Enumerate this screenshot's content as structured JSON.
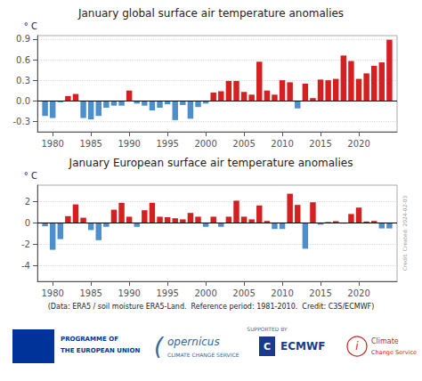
{
  "chart_data": [
    {
      "type": "bar",
      "title": "January global surface air temperature anomalies",
      "ylabel": "° C",
      "x": [
        1979,
        1980,
        1981,
        1982,
        1983,
        1984,
        1985,
        1986,
        1987,
        1988,
        1989,
        1990,
        1991,
        1992,
        1993,
        1994,
        1995,
        1996,
        1997,
        1998,
        1999,
        2000,
        2001,
        2002,
        2003,
        2004,
        2005,
        2006,
        2007,
        2008,
        2009,
        2010,
        2011,
        2012,
        2013,
        2014,
        2015,
        2016,
        2017,
        2018,
        2019,
        2020,
        2021,
        2022,
        2023,
        2024
      ],
      "values": [
        -0.22,
        -0.25,
        -0.02,
        0.07,
        0.1,
        -0.25,
        -0.27,
        -0.22,
        -0.1,
        -0.07,
        -0.07,
        0.15,
        -0.04,
        -0.07,
        -0.14,
        -0.1,
        -0.05,
        -0.28,
        -0.06,
        -0.26,
        -0.09,
        -0.04,
        0.12,
        0.14,
        0.29,
        0.29,
        0.13,
        0.09,
        0.57,
        0.15,
        0.09,
        0.3,
        0.27,
        -0.11,
        0.25,
        0.04,
        0.31,
        0.3,
        0.32,
        0.66,
        0.58,
        0.32,
        0.4,
        0.51,
        0.56,
        0.89
      ],
      "colors": [
        "#4d8fcc",
        "#4d8fcc",
        "#4d8fcc",
        "#d42020",
        "#d42020",
        "#4d8fcc",
        "#4d8fcc",
        "#4d8fcc",
        "#4d8fcc",
        "#4d8fcc",
        "#4d8fcc",
        "#d42020",
        "#4d8fcc",
        "#4d8fcc",
        "#4d8fcc",
        "#4d8fcc",
        "#4d8fcc",
        "#4d8fcc",
        "#4d8fcc",
        "#4d8fcc",
        "#4d8fcc",
        "#4d8fcc",
        "#d42020",
        "#d42020",
        "#d42020",
        "#d42020",
        "#d42020",
        "#d42020",
        "#d42020",
        "#d42020",
        "#d42020",
        "#d42020",
        "#d42020",
        "#4d8fcc",
        "#d42020",
        "#d42020",
        "#d42020",
        "#d42020",
        "#d42020",
        "#d42020",
        "#d42020",
        "#d42020",
        "#d42020",
        "#d42020",
        "#d42020",
        "#d42020"
      ],
      "xlim": [
        1978,
        2025
      ],
      "xticks": [
        1980,
        1985,
        1990,
        1995,
        2000,
        2005,
        2010,
        2015,
        2020
      ],
      "ylim": [
        -0.45,
        0.95
      ],
      "yticks": [
        -0.3,
        {
          "value": 0,
          "label": "0.0"
        },
        0.3,
        0.6,
        0.9
      ],
      "grid": true
    },
    {
      "type": "bar",
      "title": "January European surface air temperature anomalies",
      "ylabel": "° C",
      "x": [
        1979,
        1980,
        1981,
        1982,
        1983,
        1984,
        1985,
        1986,
        1987,
        1988,
        1989,
        1990,
        1991,
        1992,
        1993,
        1994,
        1995,
        1996,
        1997,
        1998,
        1999,
        2000,
        2001,
        2002,
        2003,
        2004,
        2005,
        2006,
        2007,
        2008,
        2009,
        2010,
        2011,
        2012,
        2013,
        2014,
        2015,
        2016,
        2017,
        2018,
        2019,
        2020,
        2021,
        2022,
        2023,
        2024
      ],
      "values": [
        -0.35,
        -2.55,
        -1.55,
        0.6,
        1.7,
        0.45,
        -0.7,
        -1.65,
        -0.4,
        1.2,
        1.85,
        0.55,
        -0.4,
        1.15,
        1.85,
        0.55,
        0.5,
        0.4,
        0.3,
        0.9,
        0.55,
        -0.4,
        0.55,
        -0.4,
        0.55,
        2.05,
        0.55,
        0.3,
        1.6,
        0.15,
        -0.6,
        -0.6,
        2.7,
        1.65,
        -2.45,
        1.9,
        -0.2,
        0.05,
        0.13,
        -0.1,
        0.8,
        1.4,
        0.1,
        0.15,
        -0.55,
        -0.55
      ],
      "colors": [
        "#4d8fcc",
        "#4d8fcc",
        "#4d8fcc",
        "#d42020",
        "#d42020",
        "#d42020",
        "#4d8fcc",
        "#4d8fcc",
        "#4d8fcc",
        "#d42020",
        "#d42020",
        "#d42020",
        "#4d8fcc",
        "#d42020",
        "#d42020",
        "#d42020",
        "#d42020",
        "#d42020",
        "#d42020",
        "#d42020",
        "#d42020",
        "#4d8fcc",
        "#d42020",
        "#4d8fcc",
        "#d42020",
        "#d42020",
        "#d42020",
        "#d42020",
        "#d42020",
        "#d42020",
        "#4d8fcc",
        "#4d8fcc",
        "#d42020",
        "#d42020",
        "#4d8fcc",
        "#d42020",
        "#4d8fcc",
        "#d42020",
        "#d42020",
        "#4d8fcc",
        "#d42020",
        "#d42020",
        "#d42020",
        "#d42020",
        "#4d8fcc",
        "#4d8fcc"
      ],
      "xlim": [
        1978,
        2025
      ],
      "xticks": [
        1980,
        1985,
        1990,
        1995,
        2000,
        2005,
        2010,
        2015,
        2020
      ],
      "ylim": [
        -5.5,
        3.5
      ],
      "yticks": [
        -4,
        -2,
        0,
        2
      ],
      "grid": true,
      "annotations": [
        "(Data: ERA5 / soil moisture ERA5-Land.  Reference period: 1981-2010.  Credit: C3S/ECMWF)",
        "Credit: Created: 2024-02-03",
        "PROGRAMME OF",
        "THE EUROPEAN UNION",
        "(",
        "opernicus",
        "CLIMATE CHANGE SERVICE",
        "SUPPORTED BY",
        "C",
        "ECMWF",
        "i",
        "Climate",
        "Change Service"
      ]
    }
  ]
}
